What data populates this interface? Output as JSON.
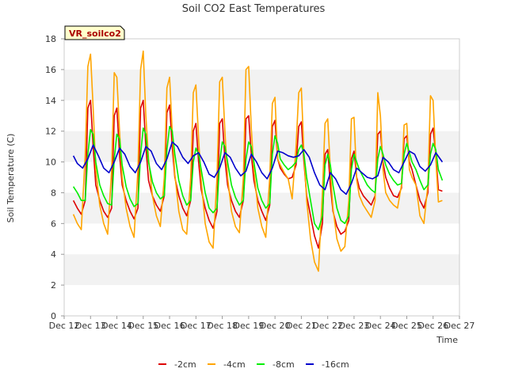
{
  "chart_data": {
    "type": "line",
    "title": "Soil CO2 East Temperatures",
    "xlabel": "Time",
    "ylabel": "Soil Temperature (C)",
    "badge": "VR_soilco2",
    "xlim": [
      12,
      27
    ],
    "ylim": [
      0,
      18
    ],
    "x_ticks": [
      12,
      13,
      14,
      15,
      16,
      17,
      18,
      19,
      20,
      21,
      22,
      23,
      24,
      25,
      26,
      27
    ],
    "x_tick_labels": [
      "Dec 12",
      "Dec 13",
      "Dec 14",
      "Dec 15",
      "Dec 16",
      "Dec 17",
      "Dec 18",
      "Dec 19",
      "Dec 20",
      "Dec 21",
      "Dec 22",
      "Dec 23",
      "Dec 24",
      "Dec 25",
      "Dec 26",
      "Dec 27"
    ],
    "y_ticks": [
      0,
      2,
      4,
      6,
      8,
      10,
      12,
      14,
      16,
      18
    ],
    "y_tick_labels": [
      "0",
      "2",
      "4",
      "6",
      "8",
      "10",
      "12",
      "14",
      "16",
      "18"
    ],
    "grid_bands": true,
    "legend_position": "bottom-center",
    "series": [
      {
        "name": "-2cm",
        "color": "#dd0000",
        "x": [
          12.35,
          12.5,
          12.65,
          12.8,
          12.9,
          13.0,
          13.1,
          13.2,
          13.35,
          13.5,
          13.65,
          13.8,
          13.9,
          14.0,
          14.1,
          14.2,
          14.35,
          14.5,
          14.65,
          14.8,
          14.9,
          15.0,
          15.1,
          15.2,
          15.35,
          15.5,
          15.65,
          15.8,
          15.9,
          16.0,
          16.1,
          16.2,
          16.35,
          16.5,
          16.65,
          16.8,
          16.9,
          17.0,
          17.1,
          17.2,
          17.35,
          17.5,
          17.65,
          17.8,
          17.9,
          18.0,
          18.1,
          18.2,
          18.35,
          18.5,
          18.65,
          18.8,
          18.9,
          19.0,
          19.1,
          19.2,
          19.35,
          19.5,
          19.65,
          19.8,
          19.9,
          20.0,
          20.1,
          20.2,
          20.35,
          20.5,
          20.65,
          20.8,
          20.9,
          21.0,
          21.1,
          21.2,
          21.35,
          21.5,
          21.65,
          21.8,
          21.9,
          22.0,
          22.1,
          22.2,
          22.35,
          22.5,
          22.65,
          22.8,
          22.9,
          23.0,
          23.1,
          23.2,
          23.35,
          23.5,
          23.65,
          23.8,
          23.9,
          24.0,
          24.1,
          24.2,
          24.35,
          24.5,
          24.65,
          24.8,
          24.9,
          25.0,
          25.1,
          25.2,
          25.35,
          25.5,
          25.65,
          25.8,
          25.9,
          26.0,
          26.1,
          26.2,
          26.35
        ],
        "y": [
          7.5,
          7.0,
          6.6,
          7.5,
          13.5,
          14.0,
          11.0,
          8.5,
          7.5,
          6.8,
          6.4,
          7.0,
          13.0,
          13.5,
          10.5,
          8.5,
          7.5,
          6.8,
          6.3,
          7.0,
          13.5,
          14.0,
          11.0,
          8.8,
          7.8,
          7.2,
          6.8,
          7.8,
          13.2,
          13.7,
          11.0,
          9.0,
          7.8,
          7.0,
          6.5,
          7.5,
          12.0,
          12.5,
          10.0,
          8.2,
          7.0,
          6.2,
          5.7,
          6.8,
          12.5,
          12.8,
          10.2,
          8.5,
          7.5,
          6.8,
          6.4,
          7.5,
          12.8,
          13.0,
          10.5,
          8.8,
          7.5,
          6.8,
          6.2,
          7.2,
          12.3,
          12.7,
          10.2,
          9.6,
          9.2,
          8.9,
          9.0,
          9.8,
          12.3,
          12.6,
          10.0,
          7.8,
          6.5,
          5.2,
          4.4,
          6.0,
          10.5,
          10.8,
          8.5,
          6.8,
          5.8,
          5.3,
          5.5,
          6.2,
          10.2,
          10.7,
          9.0,
          8.3,
          7.8,
          7.5,
          7.2,
          7.8,
          11.8,
          12.0,
          10.0,
          9.0,
          8.3,
          7.8,
          7.7,
          8.3,
          11.5,
          11.7,
          10.0,
          9.5,
          8.5,
          7.5,
          7.0,
          8.0,
          11.8,
          12.2,
          10.5,
          8.2,
          8.1
        ]
      },
      {
        "name": "-4cm",
        "color": "#ffa500",
        "x": [
          12.35,
          12.5,
          12.65,
          12.8,
          12.9,
          13.0,
          13.1,
          13.2,
          13.35,
          13.5,
          13.65,
          13.8,
          13.9,
          14.0,
          14.1,
          14.2,
          14.35,
          14.5,
          14.65,
          14.8,
          14.9,
          15.0,
          15.1,
          15.2,
          15.35,
          15.5,
          15.65,
          15.8,
          15.9,
          16.0,
          16.1,
          16.2,
          16.35,
          16.5,
          16.65,
          16.8,
          16.9,
          17.0,
          17.1,
          17.2,
          17.35,
          17.5,
          17.65,
          17.8,
          17.9,
          18.0,
          18.1,
          18.2,
          18.35,
          18.5,
          18.65,
          18.8,
          18.9,
          19.0,
          19.1,
          19.2,
          19.35,
          19.5,
          19.65,
          19.8,
          19.9,
          20.0,
          20.1,
          20.2,
          20.35,
          20.5,
          20.65,
          20.8,
          20.9,
          21.0,
          21.1,
          21.2,
          21.35,
          21.5,
          21.65,
          21.8,
          21.9,
          22.0,
          22.1,
          22.2,
          22.35,
          22.5,
          22.65,
          22.8,
          22.9,
          23.0,
          23.1,
          23.2,
          23.35,
          23.5,
          23.65,
          23.8,
          23.9,
          24.0,
          24.1,
          24.2,
          24.35,
          24.5,
          24.65,
          24.8,
          24.9,
          25.0,
          25.1,
          25.2,
          25.35,
          25.5,
          25.65,
          25.8,
          25.9,
          26.0,
          26.1,
          26.2,
          26.35
        ],
        "y": [
          6.6,
          6.0,
          5.6,
          10.5,
          16.2,
          17.0,
          13.5,
          9.5,
          7.2,
          6.0,
          5.3,
          9.5,
          15.8,
          15.5,
          12.0,
          9.0,
          7.0,
          5.8,
          5.1,
          9.5,
          16.0,
          17.2,
          13.0,
          10.2,
          7.8,
          6.5,
          5.8,
          9.0,
          14.8,
          15.5,
          12.0,
          9.2,
          6.8,
          5.6,
          5.3,
          9.0,
          14.5,
          15.0,
          11.5,
          8.8,
          6.0,
          4.8,
          4.4,
          9.0,
          15.2,
          15.5,
          12.0,
          9.0,
          6.8,
          5.8,
          5.4,
          9.0,
          16.0,
          16.2,
          12.2,
          9.5,
          7.0,
          5.8,
          5.1,
          9.0,
          13.8,
          14.2,
          10.2,
          9.8,
          9.3,
          8.9,
          7.6,
          11.0,
          14.5,
          14.8,
          10.5,
          7.5,
          5.0,
          3.5,
          2.9,
          8.0,
          12.5,
          12.8,
          9.5,
          7.0,
          5.0,
          4.2,
          4.5,
          7.5,
          12.8,
          12.9,
          8.8,
          7.8,
          7.2,
          6.8,
          6.4,
          7.5,
          14.5,
          13.0,
          9.5,
          8.0,
          7.5,
          7.2,
          7.0,
          8.5,
          12.4,
          12.5,
          9.5,
          9.0,
          8.5,
          6.5,
          6.0,
          8.5,
          14.3,
          14.0,
          10.2,
          7.4,
          7.5
        ]
      },
      {
        "name": "-8cm",
        "color": "#00ee00",
        "x": [
          12.35,
          12.5,
          12.65,
          12.8,
          12.9,
          13.0,
          13.1,
          13.2,
          13.35,
          13.5,
          13.65,
          13.8,
          13.9,
          14.0,
          14.1,
          14.2,
          14.35,
          14.5,
          14.65,
          14.8,
          14.9,
          15.0,
          15.1,
          15.2,
          15.35,
          15.5,
          15.65,
          15.8,
          15.9,
          16.0,
          16.1,
          16.2,
          16.35,
          16.5,
          16.65,
          16.8,
          16.9,
          17.0,
          17.1,
          17.2,
          17.35,
          17.5,
          17.65,
          17.8,
          17.9,
          18.0,
          18.1,
          18.2,
          18.35,
          18.5,
          18.65,
          18.8,
          18.9,
          19.0,
          19.1,
          19.2,
          19.35,
          19.5,
          19.65,
          19.8,
          19.9,
          20.0,
          20.1,
          20.2,
          20.35,
          20.5,
          20.65,
          20.8,
          20.9,
          21.0,
          21.1,
          21.2,
          21.35,
          21.5,
          21.65,
          21.8,
          21.9,
          22.0,
          22.1,
          22.2,
          22.35,
          22.5,
          22.65,
          22.8,
          22.9,
          23.0,
          23.1,
          23.2,
          23.35,
          23.5,
          23.65,
          23.8,
          23.9,
          24.0,
          24.1,
          24.2,
          24.35,
          24.5,
          24.65,
          24.8,
          24.9,
          25.0,
          25.1,
          25.2,
          25.35,
          25.5,
          25.65,
          25.8,
          25.9,
          26.0,
          26.1,
          26.2,
          26.35
        ],
        "y": [
          8.4,
          8.0,
          7.5,
          7.5,
          10.5,
          12.1,
          11.8,
          10.0,
          8.5,
          7.8,
          7.3,
          7.2,
          10.2,
          11.8,
          11.5,
          9.8,
          8.4,
          7.6,
          7.1,
          7.3,
          10.5,
          12.2,
          11.8,
          10.0,
          8.7,
          8.0,
          7.6,
          7.8,
          10.8,
          12.3,
          12.0,
          10.5,
          8.8,
          7.8,
          7.2,
          7.5,
          10.0,
          10.9,
          10.5,
          9.5,
          8.0,
          7.0,
          6.7,
          7.0,
          10.0,
          11.3,
          11.0,
          10.0,
          8.5,
          7.7,
          7.2,
          7.5,
          10.2,
          11.3,
          11.0,
          10.0,
          8.3,
          7.5,
          7.0,
          7.3,
          10.5,
          11.7,
          11.2,
          10.2,
          9.8,
          9.5,
          9.7,
          10.0,
          10.8,
          11.1,
          10.5,
          9.0,
          7.5,
          6.0,
          5.6,
          6.5,
          9.8,
          10.5,
          9.8,
          8.5,
          7.0,
          6.2,
          6.0,
          6.5,
          9.5,
          10.5,
          10.0,
          9.5,
          9.0,
          8.5,
          8.2,
          8.0,
          10.2,
          11.0,
          10.5,
          9.8,
          9.2,
          8.8,
          8.5,
          8.6,
          10.5,
          11.2,
          10.6,
          10.0,
          9.5,
          8.8,
          8.2,
          8.5,
          10.5,
          11.2,
          10.8,
          9.5,
          8.8
        ]
      },
      {
        "name": "-16cm",
        "color": "#0000cc",
        "x": [
          12.35,
          12.5,
          12.7,
          12.9,
          13.1,
          13.3,
          13.5,
          13.7,
          13.9,
          14.1,
          14.3,
          14.5,
          14.7,
          14.9,
          15.1,
          15.3,
          15.5,
          15.7,
          15.9,
          16.1,
          16.3,
          16.5,
          16.7,
          16.9,
          17.1,
          17.3,
          17.5,
          17.7,
          17.9,
          18.1,
          18.3,
          18.5,
          18.7,
          18.9,
          19.1,
          19.3,
          19.5,
          19.7,
          19.9,
          20.1,
          20.3,
          20.5,
          20.7,
          20.9,
          21.1,
          21.3,
          21.5,
          21.7,
          21.9,
          22.1,
          22.3,
          22.5,
          22.7,
          22.9,
          23.1,
          23.3,
          23.5,
          23.7,
          23.9,
          24.1,
          24.3,
          24.5,
          24.7,
          24.9,
          25.1,
          25.3,
          25.5,
          25.7,
          25.9,
          26.1,
          26.35
        ],
        "y": [
          10.4,
          9.9,
          9.6,
          10.2,
          11.1,
          10.4,
          9.6,
          9.3,
          10.0,
          10.9,
          10.5,
          9.7,
          9.3,
          10.0,
          11.0,
          10.7,
          9.9,
          9.5,
          10.2,
          11.3,
          11.0,
          10.3,
          9.9,
          10.4,
          10.6,
          10.0,
          9.2,
          9.0,
          9.6,
          10.6,
          10.3,
          9.6,
          9.1,
          9.4,
          10.5,
          10.0,
          9.3,
          8.9,
          9.6,
          10.7,
          10.6,
          10.4,
          10.3,
          10.4,
          10.8,
          10.3,
          9.3,
          8.5,
          8.2,
          9.3,
          8.9,
          8.2,
          7.9,
          8.6,
          9.6,
          9.3,
          9.0,
          8.9,
          9.1,
          10.3,
          10.0,
          9.5,
          9.3,
          10.0,
          10.7,
          10.5,
          9.7,
          9.4,
          9.8,
          10.6,
          10.0
        ]
      }
    ]
  }
}
